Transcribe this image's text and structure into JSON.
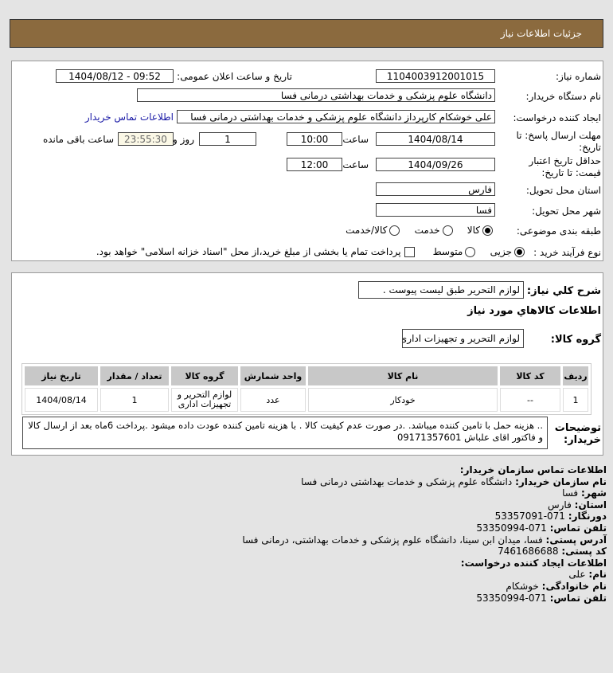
{
  "header": {
    "title": "جزئیات اطلاعات نیاز"
  },
  "form": {
    "need_number_label": "شماره نیاز:",
    "need_number": "1104003912001015",
    "announce_label": "تاریخ و ساعت اعلان عمومی:",
    "announce_value": "1404/08/12 - 09:52",
    "buyer_label": "نام دستگاه خریدار:",
    "buyer_value": "دانشگاه علوم پزشکی و خدمات بهداشتی درمانی فسا",
    "creator_label": "ایجاد کننده درخواست:",
    "creator_value": "علی خوشکام کارپرداز دانشگاه علوم پزشکی و خدمات بهداشتی درمانی فسا",
    "contact_link": "اطلاعات تماس خریدار",
    "deadline_label": "مهلت ارسال پاسخ: تا تاریخ:",
    "deadline_date": "1404/08/14",
    "time_label": "ساعت",
    "deadline_time": "10:00",
    "days": "1",
    "days_label": "روز و",
    "remaining": "23:55:30",
    "remaining_label": "ساعت باقی مانده",
    "validity_label": "حداقل تاریخ اعتبار قیمت: تا تاریخ:",
    "validity_date": "1404/09/26",
    "validity_time": "12:00",
    "province_label": "استان محل تحویل:",
    "province": "فارس",
    "city_label": "شهر محل تحویل:",
    "city": "فسا",
    "category_label": "طبقه بندی موضوعی:",
    "category_options": [
      "کالا",
      "خدمت",
      "کالا/خدمت"
    ],
    "category_selected": "کالا",
    "process_label": "نوع فرآیند خرید :",
    "process_options": [
      "جزیی",
      "متوسط"
    ],
    "process_selected": "جزیی",
    "payment_note": "پرداخت تمام یا بخشی از مبلغ خرید،از محل \"اسناد خزانه اسلامی\" خواهد بود."
  },
  "details": {
    "summary_label": "شرح کلي نياز:",
    "summary": "لوازم التحرير طبق ليست پيوست .",
    "goods_title": "اطلاعات کالاهاي مورد نياز",
    "group_label": "گروه کالا:",
    "group": "لوازم التحریر و تجهیزات اداری",
    "columns": [
      "ردیف",
      "کد کالا",
      "نام کالا",
      "واحد شمارش",
      "گروه کالا",
      "تعداد / مقدار",
      "تاریخ نیاز"
    ],
    "rows": [
      [
        "1",
        "--",
        "خودکار",
        "عدد",
        "لوازم التحریر و تجهیزات اداری",
        "1",
        "1404/08/14"
      ]
    ],
    "notes_label": "توضیحات خریدار:",
    "notes": ".. هزینه حمل با تامین کننده میباشد. .در صورت عدم کیفیت کالا . با هزینه تامین کننده عودت داده میشود .پرداخت 6ماه بعد از ارسال کالا و فاکتور اقای علباش 09171357601"
  },
  "contact": {
    "title": "اطلاعات تماس سازمان خریدار:",
    "org_k": "نام سازمان خریدار:",
    "org_v": "دانشگاه علوم پزشکی و خدمات بهداشتی درمانی فسا",
    "city_k": "شهر:",
    "city_v": "فسا",
    "prov_k": "استان:",
    "prov_v": "فارس",
    "fax_k": "دورنگار:",
    "fax_v": "071-53357091",
    "tel_k": "تلفن تماس:",
    "tel_v": "071-53350994",
    "addr_k": "آدرس پستی:",
    "addr_v": "فسا، میدان ابن سینا، دانشگاه علوم پزشکی و خدمات بهداشتی، درمانی فسا",
    "post_k": "کد پستی:",
    "post_v": "7461686688",
    "creator_title": "اطلاعات ایجاد کننده درخواست:",
    "name_k": "نام:",
    "name_v": "علی",
    "fam_k": "نام خانوادگی:",
    "fam_v": "خوشکام",
    "ctel_k": "تلفن تماس:",
    "ctel_v": "071-53350994"
  }
}
